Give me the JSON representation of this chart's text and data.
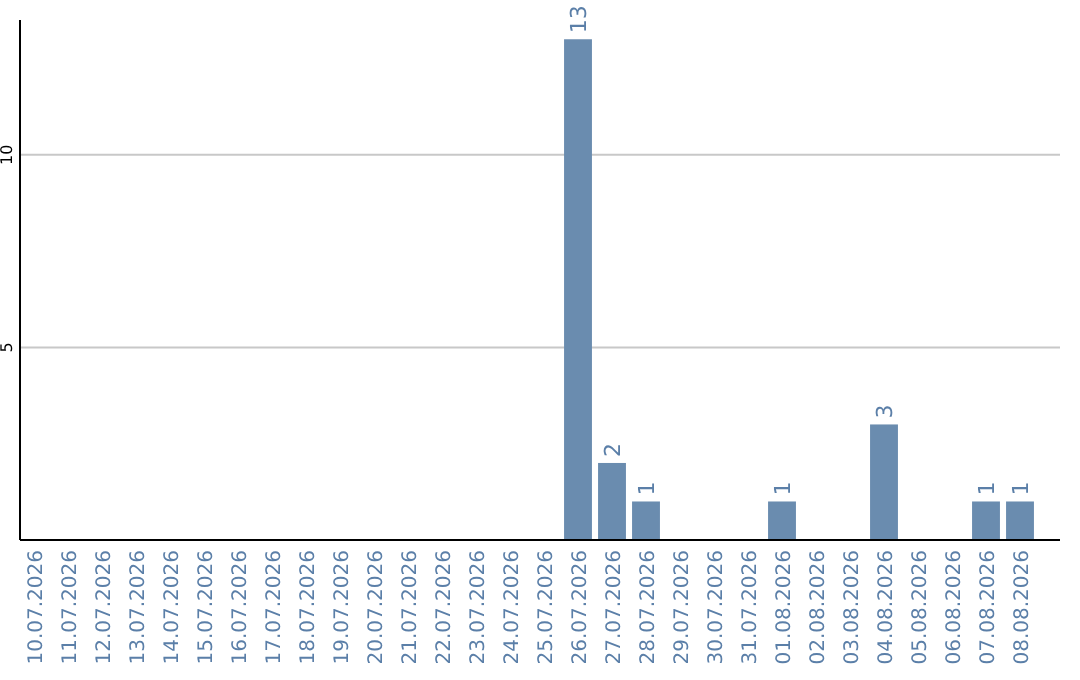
{
  "chart_data": {
    "type": "bar",
    "categories": [
      "10.07.2026",
      "11.07.2026",
      "12.07.2026",
      "13.07.2026",
      "14.07.2026",
      "15.07.2026",
      "16.07.2026",
      "17.07.2026",
      "18.07.2026",
      "19.07.2026",
      "20.07.2026",
      "21.07.2026",
      "22.07.2026",
      "23.07.2026",
      "24.07.2026",
      "25.07.2026",
      "26.07.2026",
      "27.07.2026",
      "28.07.2026",
      "29.07.2026",
      "30.07.2026",
      "31.07.2026",
      "01.08.2026",
      "02.08.2026",
      "03.08.2026",
      "04.08.2026",
      "05.08.2026",
      "06.08.2026",
      "07.08.2026",
      "08.08.2026"
    ],
    "values": [
      0,
      0,
      0,
      0,
      0,
      0,
      0,
      0,
      0,
      0,
      0,
      0,
      0,
      0,
      0,
      0,
      13,
      2,
      1,
      0,
      0,
      0,
      1,
      0,
      0,
      3,
      0,
      0,
      1,
      1
    ],
    "value_labels": [
      null,
      null,
      null,
      null,
      null,
      null,
      null,
      null,
      null,
      null,
      null,
      null,
      null,
      null,
      null,
      null,
      "13",
      "2",
      "1",
      null,
      null,
      null,
      "1",
      null,
      null,
      "3",
      null,
      null,
      "1",
      "1"
    ],
    "color": "#6a8caf",
    "ylim": [
      0,
      13.5
    ],
    "yticks": [
      5,
      10
    ],
    "grid": "y"
  }
}
